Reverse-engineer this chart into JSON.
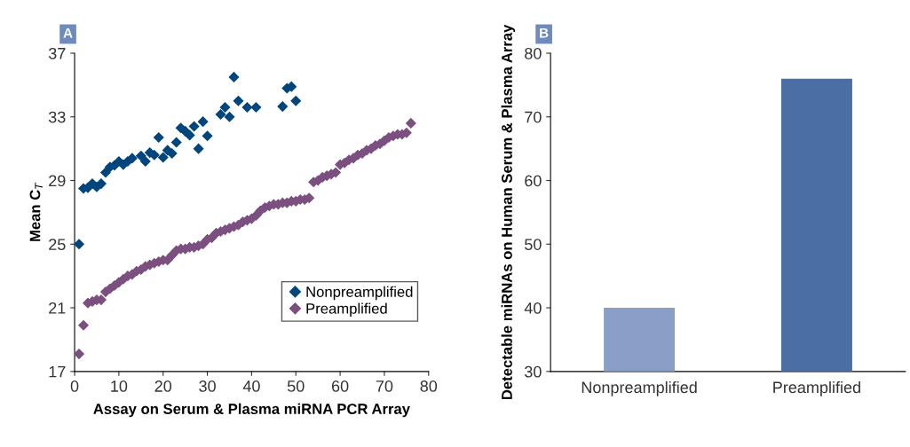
{
  "chart_data": [
    {
      "type": "scatter",
      "ylabel": "Mean C$_{T}$",
      "xlabel": "Assay on Serum & Plasma miRNA PCR Array",
      "annotations": [
        "A"
      ],
      "xlim": [
        0,
        80
      ],
      "xticks": [
        0,
        10,
        20,
        30,
        40,
        50,
        60,
        70,
        80
      ],
      "ylim": [
        17,
        37
      ],
      "yticks": [
        17,
        21,
        25,
        29,
        33,
        37
      ],
      "grid": false,
      "legend": "right",
      "marker": "diamond",
      "series": [
        {
          "name": "Nonpreamplified",
          "color": "#00457c",
          "x": [
            1,
            2,
            3,
            4,
            5,
            6,
            7,
            8,
            9,
            10,
            11,
            12,
            13,
            15,
            16,
            17,
            18,
            19,
            20,
            21,
            22,
            23,
            24,
            25,
            26,
            27,
            28,
            29,
            30,
            33,
            34,
            35,
            36,
            37,
            39,
            41,
            47,
            48,
            49,
            50
          ],
          "values": [
            25.0,
            28.5,
            28.55,
            28.8,
            28.6,
            28.8,
            29.5,
            29.85,
            29.95,
            30.2,
            30.0,
            30.2,
            30.4,
            30.55,
            30.2,
            30.75,
            30.6,
            31.7,
            30.45,
            30.9,
            30.7,
            31.4,
            32.3,
            32.1,
            31.85,
            32.4,
            31.0,
            32.7,
            31.8,
            33.15,
            33.6,
            33.0,
            35.5,
            34.0,
            33.6,
            33.6,
            33.65,
            34.8,
            34.9,
            34.0
          ]
        },
        {
          "name": "Preamplified",
          "color": "#7b4f80",
          "x": [
            1,
            2,
            3,
            4,
            5,
            6,
            7,
            8,
            9,
            10,
            11,
            12,
            13,
            14,
            15,
            16,
            17,
            18,
            19,
            20,
            21,
            22,
            23,
            24,
            25,
            26,
            27,
            28,
            29,
            30,
            31,
            32,
            33,
            34,
            35,
            36,
            37,
            38,
            39,
            40,
            41,
            42,
            43,
            44,
            45,
            46,
            47,
            48,
            49,
            50,
            51,
            52,
            53,
            54,
            55,
            56,
            57,
            58,
            59,
            60,
            61,
            62,
            63,
            64,
            65,
            66,
            67,
            68,
            69,
            70,
            71,
            72,
            73,
            74,
            75,
            76
          ],
          "values": [
            18.1,
            19.9,
            21.3,
            21.4,
            21.5,
            21.5,
            22.0,
            22.2,
            22.4,
            22.6,
            22.8,
            23.0,
            23.1,
            23.3,
            23.4,
            23.6,
            23.7,
            23.8,
            23.9,
            24.0,
            24.0,
            24.3,
            24.6,
            24.7,
            24.7,
            24.8,
            24.8,
            24.9,
            25.0,
            25.3,
            25.4,
            25.7,
            25.8,
            25.9,
            26.0,
            26.1,
            26.2,
            26.4,
            26.5,
            26.6,
            26.8,
            27.1,
            27.3,
            27.4,
            27.5,
            27.5,
            27.6,
            27.6,
            27.7,
            27.7,
            27.8,
            27.8,
            27.9,
            28.9,
            29.0,
            29.2,
            29.3,
            29.4,
            29.5,
            30.0,
            30.1,
            30.3,
            30.4,
            30.6,
            30.7,
            30.9,
            31.0,
            31.2,
            31.3,
            31.5,
            31.7,
            31.8,
            31.9,
            31.9,
            32.0,
            32.6
          ]
        }
      ]
    },
    {
      "type": "bar",
      "ylabel": "Detectable miRNAs on Human Serum & Plasma Array",
      "annotations": [
        "B"
      ],
      "categories": [
        "Nonpreamplified",
        "Preamplified"
      ],
      "values": [
        40,
        76
      ],
      "colors": [
        "#8a9fc8",
        "#4b6ea4"
      ],
      "ylim": [
        30,
        80
      ],
      "yticks": [
        30,
        40,
        50,
        60,
        70,
        80
      ],
      "grid": false,
      "legend": false
    }
  ]
}
